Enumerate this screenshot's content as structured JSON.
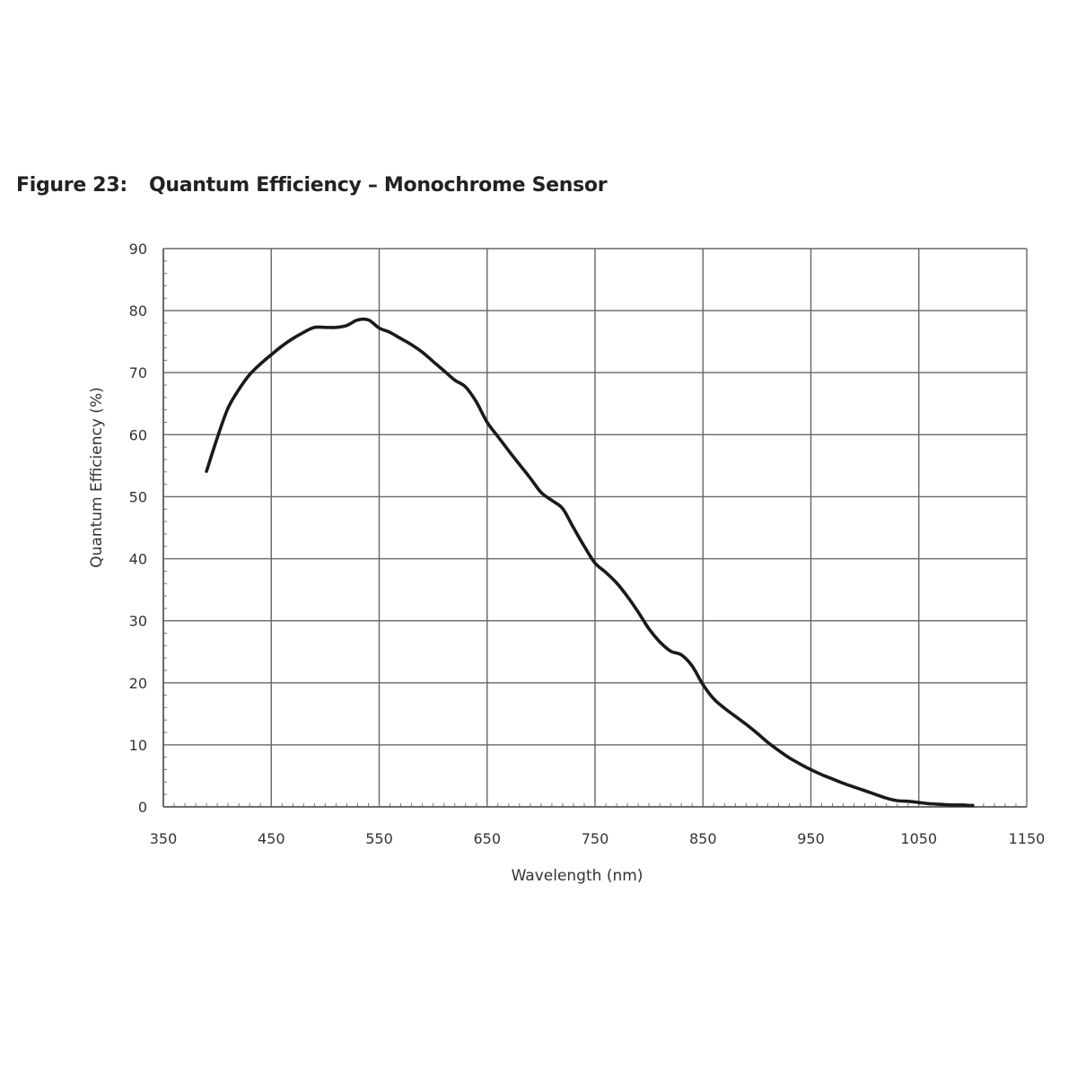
{
  "figure": {
    "label": "Figure 23:",
    "title": "Quantum Efficiency – Monochrome Sensor"
  },
  "chart_data": {
    "type": "line",
    "title": "Quantum Efficiency – Monochrome Sensor",
    "xlabel": "Wavelength (nm)",
    "ylabel": "Quantum Efficiency (%)",
    "xlim": [
      350,
      1150
    ],
    "ylim": [
      0,
      90
    ],
    "xticks": [
      350,
      450,
      550,
      650,
      750,
      850,
      950,
      1050,
      1150
    ],
    "yticks": [
      0,
      10,
      20,
      30,
      40,
      50,
      60,
      70,
      80,
      90
    ],
    "grid": true,
    "legend": "none",
    "line_color": "#1a1a1a",
    "series": [
      {
        "x": [
          390,
          400,
          410,
          420,
          430,
          440,
          450,
          460,
          470,
          480,
          490,
          500,
          510,
          520,
          530,
          540,
          550,
          560,
          570,
          580,
          590,
          600,
          610,
          620,
          630,
          640,
          650,
          660,
          670,
          680,
          690,
          700,
          710,
          720,
          730,
          740,
          750,
          760,
          770,
          780,
          790,
          800,
          810,
          820,
          830,
          840,
          850,
          860,
          870,
          880,
          890,
          900,
          910,
          920,
          930,
          940,
          950,
          960,
          970,
          980,
          990,
          1000,
          1010,
          1020,
          1030,
          1040,
          1050,
          1060,
          1070,
          1080,
          1090,
          1100
        ],
        "values": [
          54.1,
          59.5,
          64.3,
          67.3,
          69.7,
          71.4,
          72.9,
          74.3,
          75.5,
          76.5,
          77.3,
          77.3,
          77.3,
          77.6,
          78.5,
          78.5,
          77.2,
          76.5,
          75.5,
          74.5,
          73.3,
          71.8,
          70.3,
          68.8,
          67.7,
          65.3,
          62.0,
          59.7,
          57.4,
          55.2,
          53.0,
          50.7,
          49.4,
          48.1,
          45.0,
          42.0,
          39.3,
          37.8,
          36.1,
          33.9,
          31.4,
          28.7,
          26.6,
          25.1,
          24.5,
          22.7,
          19.7,
          17.4,
          15.9,
          14.6,
          13.3,
          11.9,
          10.4,
          9.1,
          7.9,
          6.9,
          6.0,
          5.2,
          4.5,
          3.8,
          3.2,
          2.6,
          2.0,
          1.4,
          1.0,
          0.9,
          0.7,
          0.5,
          0.4,
          0.3,
          0.3,
          0.2
        ]
      }
    ]
  }
}
